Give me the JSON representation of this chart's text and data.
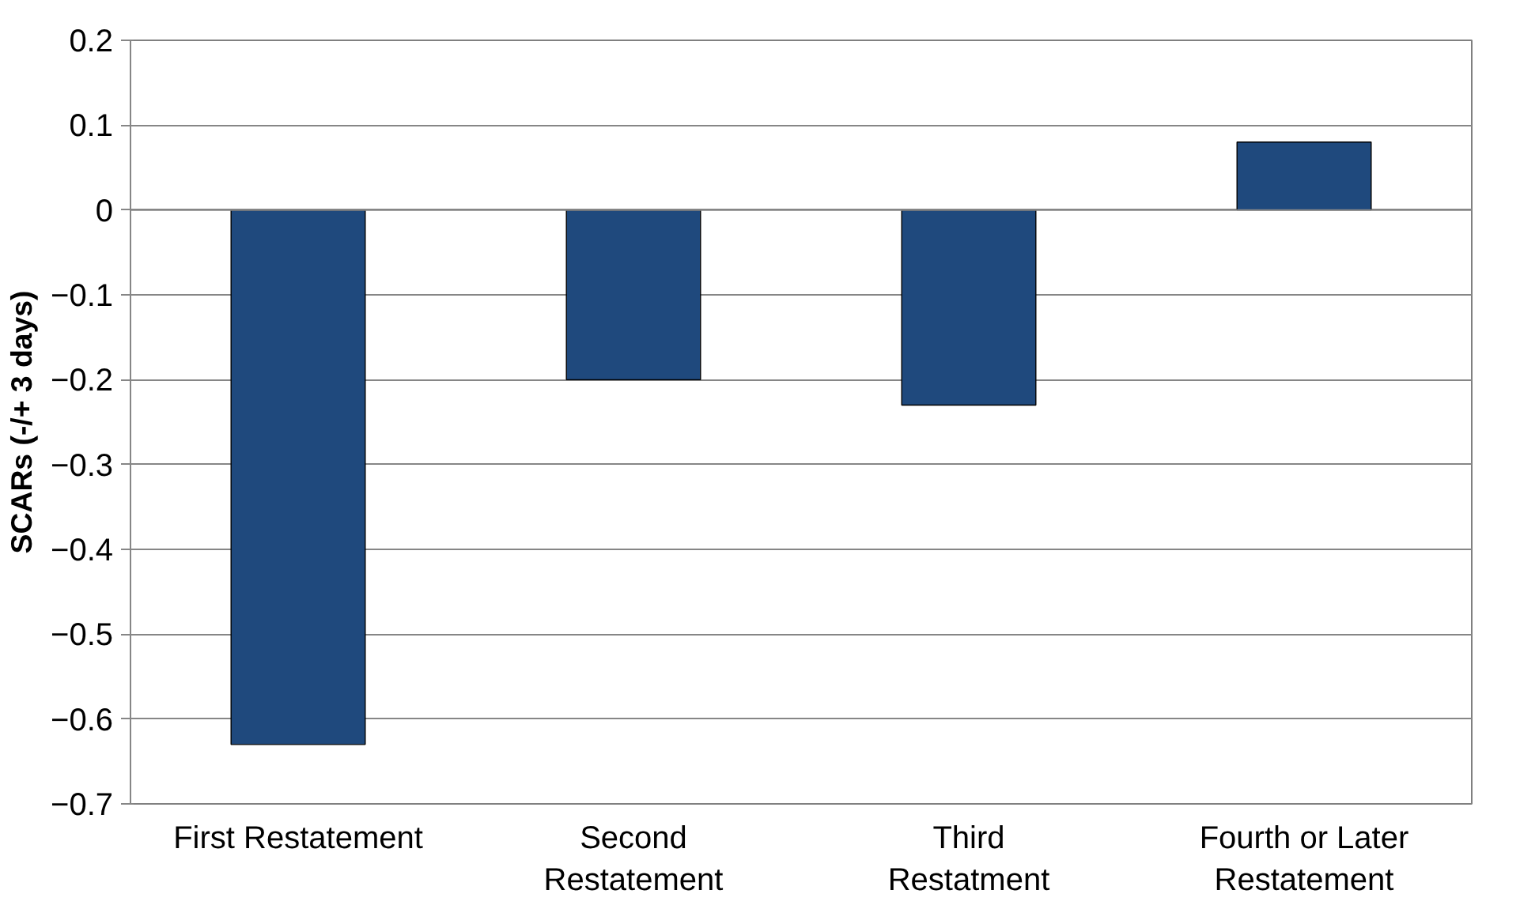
{
  "chart_data": {
    "type": "bar",
    "ylabel": "SCARs (-/+ 3 days)",
    "categories": [
      "First Restatement",
      "Second\nRestatement",
      "Third\nRestatment",
      "Fourth or Later\nRestatement"
    ],
    "values": [
      -0.63,
      -0.2,
      -0.23,
      0.08
    ],
    "color": "#1f497d",
    "ylim": [
      -0.7,
      0.2
    ],
    "yticks": [
      -0.7,
      -0.6,
      -0.5,
      -0.4,
      -0.3,
      -0.2,
      -0.1,
      0,
      0.1,
      0.2
    ],
    "grid": "y"
  }
}
